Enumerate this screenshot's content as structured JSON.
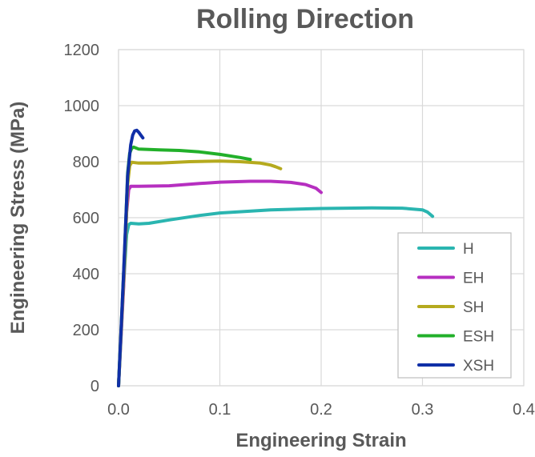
{
  "chart_data": {
    "type": "line",
    "title": "Rolling Direction",
    "xlabel": "Engineering Strain",
    "ylabel": "Engineering Stress (MPa)",
    "xlim": [
      0,
      0.4
    ],
    "ylim": [
      0,
      1200
    ],
    "xticks": [
      "0.0",
      "0.1",
      "0.2",
      "0.3",
      "0.4"
    ],
    "yticks": [
      "0",
      "200",
      "400",
      "600",
      "800",
      "1000",
      "1200"
    ],
    "grid": true,
    "legend_position": "bottom-right",
    "series": [
      {
        "name": "H",
        "color": "#2AB5B0",
        "x": [
          0,
          0.004,
          0.008,
          0.01,
          0.012,
          0.02,
          0.03,
          0.05,
          0.08,
          0.1,
          0.15,
          0.2,
          0.25,
          0.28,
          0.3,
          0.305,
          0.31
        ],
        "y": [
          0,
          300,
          540,
          575,
          580,
          578,
          580,
          592,
          608,
          617,
          628,
          633,
          635,
          634,
          628,
          620,
          605
        ]
      },
      {
        "name": "EH",
        "color": "#B62FC0",
        "x": [
          0,
          0.005,
          0.008,
          0.01,
          0.012,
          0.02,
          0.05,
          0.08,
          0.1,
          0.13,
          0.15,
          0.17,
          0.185,
          0.195,
          0.2
        ],
        "y": [
          0,
          350,
          620,
          700,
          712,
          712,
          714,
          722,
          727,
          730,
          730,
          726,
          718,
          705,
          690
        ]
      },
      {
        "name": "SH",
        "color": "#B5AA1E",
        "x": [
          0,
          0.006,
          0.009,
          0.011,
          0.013,
          0.02,
          0.04,
          0.07,
          0.1,
          0.12,
          0.14,
          0.15,
          0.155,
          0.16
        ],
        "y": [
          0,
          450,
          720,
          785,
          798,
          795,
          795,
          800,
          802,
          800,
          795,
          788,
          782,
          775
        ]
      },
      {
        "name": "ESH",
        "color": "#22B02A",
        "x": [
          0,
          0.006,
          0.009,
          0.011,
          0.013,
          0.015,
          0.02,
          0.04,
          0.06,
          0.08,
          0.1,
          0.12,
          0.13
        ],
        "y": [
          0,
          480,
          760,
          830,
          848,
          852,
          845,
          842,
          840,
          835,
          826,
          815,
          808
        ]
      },
      {
        "name": "XSH",
        "color": "#102FA7",
        "x": [
          0,
          0.005,
          0.009,
          0.012,
          0.014,
          0.016,
          0.018,
          0.02,
          0.022,
          0.024
        ],
        "y": [
          0,
          400,
          750,
          860,
          895,
          910,
          912,
          905,
          895,
          885
        ]
      }
    ]
  }
}
